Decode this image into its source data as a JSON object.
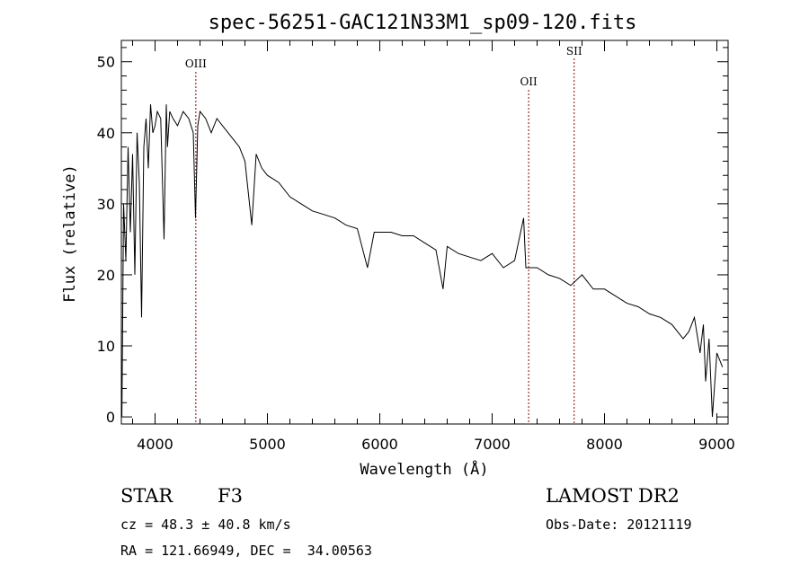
{
  "chart_data": {
    "type": "line",
    "title": "spec-56251-GAC121N33M1_sp09-120.fits",
    "xlabel": "Wavelength (Å)",
    "ylabel": "Flux (relative)",
    "xlim": [
      3700,
      9100
    ],
    "ylim": [
      -1,
      53
    ],
    "xticks": [
      4000,
      5000,
      6000,
      7000,
      8000,
      9000
    ],
    "yticks": [
      0,
      10,
      20,
      30,
      40,
      50
    ],
    "grid": false,
    "series": [
      {
        "x": [
          3705,
          3720,
          3740,
          3760,
          3780,
          3800,
          3820,
          3840,
          3860,
          3880,
          3900,
          3920,
          3940,
          3960,
          3980,
          4000,
          4020,
          4050,
          4080,
          4100,
          4110,
          4130,
          4160,
          4200,
          4250,
          4300,
          4340,
          4360,
          4380,
          4400,
          4450,
          4500,
          4550,
          4600,
          4650,
          4700,
          4750,
          4800,
          4861,
          4900,
          4950,
          5000,
          5100,
          5200,
          5300,
          5400,
          5500,
          5600,
          5700,
          5800,
          5890,
          5950,
          6000,
          6100,
          6200,
          6300,
          6400,
          6500,
          6563,
          6600,
          6700,
          6800,
          6900,
          7000,
          7100,
          7200,
          7280,
          7300,
          7400,
          7500,
          7600,
          7700,
          7800,
          7900,
          8000,
          8100,
          8200,
          8300,
          8400,
          8500,
          8600,
          8700,
          8750,
          8800,
          8850,
          8880,
          8900,
          8930,
          8960,
          9000,
          9050
        ],
        "y": [
          0,
          30,
          22,
          38,
          26,
          37,
          20,
          40,
          33,
          14,
          38,
          42,
          35,
          44,
          40,
          41,
          43,
          42,
          25,
          44,
          38,
          43,
          42,
          41,
          43,
          42,
          40,
          28,
          41,
          43,
          42,
          40,
          42,
          41,
          40,
          39,
          38,
          36,
          27,
          37,
          35,
          34,
          33,
          31,
          30,
          29,
          28.5,
          28,
          27,
          26.5,
          21,
          26,
          26,
          26,
          25.5,
          25.5,
          24.5,
          23.5,
          18,
          24,
          23,
          22.5,
          22,
          23,
          21,
          22,
          28,
          21,
          21,
          20,
          19.5,
          18.5,
          20,
          18,
          18,
          17,
          16,
          15.5,
          14.5,
          14,
          13,
          11,
          12,
          14,
          9,
          13,
          5,
          11,
          0,
          9,
          7
        ]
      }
    ],
    "line_markers": [
      {
        "label": "OIII",
        "x": 4363
      },
      {
        "label": "OII",
        "x": 7325
      },
      {
        "label": "SII",
        "x": 7730
      }
    ]
  },
  "info": {
    "class": "STAR",
    "subclass": "F3",
    "survey": "LAMOST DR2",
    "cz": "cz = 48.3 ± 40.8 km/s",
    "obsdate": "Obs-Date: 20121119",
    "radec": "RA = 121.66949, DEC =  34.00563"
  },
  "colors": {
    "spectrum": "#000000",
    "marker_line": "#8b0000",
    "axes": "#000000"
  }
}
